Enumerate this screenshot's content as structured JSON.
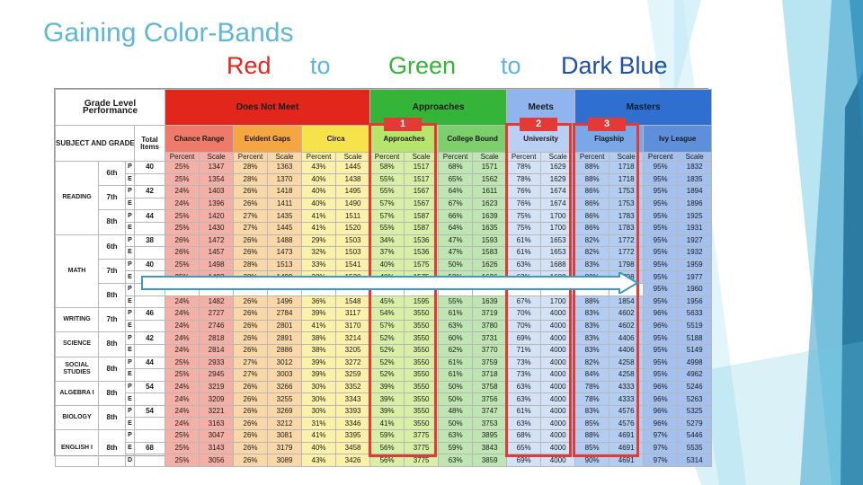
{
  "slide": {
    "title": "Gaining Color-Bands",
    "subtitle": {
      "w1": "Red",
      "w2": "to",
      "w3": "Green",
      "w4": "to",
      "w5": "Dark Blue"
    },
    "colors": {
      "red": "#e3261c",
      "green": "#35b43a",
      "blue": "#1f4fa8",
      "title": "#5fb7d6"
    }
  },
  "table": {
    "corner": "Grade Level Performance",
    "subject_header": "SUBJECT AND GRADE",
    "total_items": "Total Items",
    "groups": [
      "Does Not Meet",
      "Approaches",
      "Meets",
      "Masters"
    ],
    "bands": [
      "Chance Range",
      "Evident Gaps",
      "Circa",
      "Approaches",
      "College Bound",
      "University",
      "Flagship",
      "Ivy League"
    ],
    "badges": [
      "1",
      "2",
      "3"
    ],
    "pct": "Percent",
    "scale": "Scale",
    "rows": [
      {
        "subject": "READING",
        "grade": "6th",
        "t": "P",
        "items": "40",
        "v": [
          "25%",
          "1347",
          "28%",
          "1363",
          "43%",
          "1445",
          "58%",
          "1517",
          "68%",
          "1571",
          "78%",
          "1629",
          "88%",
          "1718",
          "95%",
          "1832"
        ]
      },
      {
        "t": "E",
        "v": [
          "25%",
          "1354",
          "28%",
          "1370",
          "40%",
          "1438",
          "55%",
          "1517",
          "65%",
          "1562",
          "78%",
          "1629",
          "88%",
          "1718",
          "95%",
          "1835"
        ]
      },
      {
        "grade": "7th",
        "t": "P",
        "items": "42",
        "v": [
          "24%",
          "1403",
          "26%",
          "1418",
          "40%",
          "1495",
          "55%",
          "1567",
          "64%",
          "1611",
          "76%",
          "1674",
          "86%",
          "1753",
          "95%",
          "1894"
        ]
      },
      {
        "t": "E",
        "v": [
          "24%",
          "1396",
          "26%",
          "1411",
          "40%",
          "1490",
          "57%",
          "1567",
          "67%",
          "1623",
          "76%",
          "1674",
          "86%",
          "1753",
          "95%",
          "1896"
        ]
      },
      {
        "grade": "8th",
        "t": "P",
        "items": "44",
        "v": [
          "25%",
          "1420",
          "27%",
          "1435",
          "41%",
          "1511",
          "57%",
          "1587",
          "66%",
          "1639",
          "75%",
          "1700",
          "86%",
          "1783",
          "95%",
          "1925"
        ]
      },
      {
        "t": "E",
        "v": [
          "25%",
          "1430",
          "27%",
          "1445",
          "41%",
          "1520",
          "55%",
          "1587",
          "64%",
          "1635",
          "75%",
          "1700",
          "86%",
          "1783",
          "95%",
          "1931"
        ]
      },
      {
        "subject": "MATH",
        "grade": "6th",
        "t": "P",
        "items": "38",
        "v": [
          "26%",
          "1472",
          "26%",
          "1488",
          "29%",
          "1503",
          "34%",
          "1536",
          "47%",
          "1593",
          "61%",
          "1653",
          "82%",
          "1772",
          "95%",
          "1927"
        ]
      },
      {
        "t": "E",
        "v": [
          "26%",
          "1457",
          "26%",
          "1473",
          "32%",
          "1503",
          "37%",
          "1536",
          "47%",
          "1583",
          "61%",
          "1653",
          "82%",
          "1772",
          "95%",
          "1932"
        ]
      },
      {
        "grade": "7th",
        "t": "P",
        "items": "40",
        "v": [
          "25%",
          "1498",
          "28%",
          "1513",
          "33%",
          "1541",
          "40%",
          "1575",
          "50%",
          "1626",
          "63%",
          "1688",
          "83%",
          "1798",
          "95%",
          "1959"
        ]
      },
      {
        "t": "E",
        "v": [
          "25%",
          "1483",
          "28%",
          "1499",
          "33%",
          "1530",
          "40%",
          "1575",
          "50%",
          "1626",
          "63%",
          "1688",
          "80%",
          "1798",
          "95%",
          "1977"
        ]
      },
      {
        "grade": "8th",
        "t": "P",
        "items": "",
        "v": [
          "",
          "",
          "",
          "",
          "",
          "",
          "",
          "",
          "",
          "",
          "",
          "",
          "",
          "",
          "95%",
          "1960"
        ]
      },
      {
        "t": "E",
        "v": [
          "24%",
          "1482",
          "26%",
          "1496",
          "36%",
          "1548",
          "45%",
          "1595",
          "55%",
          "1639",
          "67%",
          "1700",
          "88%",
          "1854",
          "95%",
          "1956"
        ]
      },
      {
        "subject": "WRITING",
        "grade": "7th",
        "t": "P",
        "items": "46",
        "v": [
          "24%",
          "2727",
          "26%",
          "2784",
          "39%",
          "3117",
          "54%",
          "3550",
          "61%",
          "3719",
          "70%",
          "4000",
          "83%",
          "4602",
          "96%",
          "5633"
        ]
      },
      {
        "t": "E",
        "v": [
          "24%",
          "2746",
          "26%",
          "2801",
          "41%",
          "3170",
          "57%",
          "3550",
          "63%",
          "3780",
          "70%",
          "4000",
          "83%",
          "4602",
          "96%",
          "5519"
        ]
      },
      {
        "subject": "SCIENCE",
        "grade": "8th",
        "t": "P",
        "items": "42",
        "v": [
          "24%",
          "2818",
          "26%",
          "2891",
          "38%",
          "3214",
          "52%",
          "3550",
          "60%",
          "3731",
          "69%",
          "4000",
          "83%",
          "4406",
          "95%",
          "5188"
        ]
      },
      {
        "t": "E",
        "v": [
          "24%",
          "2814",
          "26%",
          "2886",
          "38%",
          "3205",
          "52%",
          "3550",
          "62%",
          "3770",
          "71%",
          "4000",
          "83%",
          "4406",
          "95%",
          "5149"
        ]
      },
      {
        "subject": "SOCIAL STUDIES",
        "grade": "8th",
        "t": "P",
        "items": "44",
        "v": [
          "25%",
          "2933",
          "27%",
          "3012",
          "39%",
          "3272",
          "52%",
          "3550",
          "61%",
          "3759",
          "73%",
          "4000",
          "82%",
          "4258",
          "95%",
          "4998"
        ]
      },
      {
        "t": "E",
        "v": [
          "25%",
          "2945",
          "27%",
          "3003",
          "39%",
          "3259",
          "52%",
          "3550",
          "61%",
          "3718",
          "73%",
          "4000",
          "84%",
          "4258",
          "95%",
          "4962"
        ]
      },
      {
        "subject": "ALGEBRA I",
        "grade": "8th",
        "t": "P",
        "items": "54",
        "v": [
          "24%",
          "3219",
          "26%",
          "3266",
          "30%",
          "3352",
          "39%",
          "3550",
          "50%",
          "3758",
          "63%",
          "4000",
          "78%",
          "4333",
          "96%",
          "5246"
        ]
      },
      {
        "t": "E",
        "v": [
          "24%",
          "3209",
          "26%",
          "3255",
          "30%",
          "3343",
          "39%",
          "3550",
          "50%",
          "3756",
          "63%",
          "4000",
          "78%",
          "4333",
          "96%",
          "5263"
        ]
      },
      {
        "subject": "BIOLOGY",
        "grade": "8th",
        "t": "P",
        "items": "54",
        "v": [
          "24%",
          "3221",
          "26%",
          "3269",
          "30%",
          "3393",
          "39%",
          "3550",
          "48%",
          "3747",
          "61%",
          "4000",
          "83%",
          "4576",
          "96%",
          "5325"
        ]
      },
      {
        "t": "E",
        "v": [
          "24%",
          "3163",
          "26%",
          "3212",
          "31%",
          "3346",
          "41%",
          "3550",
          "50%",
          "3753",
          "63%",
          "4000",
          "85%",
          "4576",
          "96%",
          "5279"
        ]
      },
      {
        "subject": "ENGLISH I",
        "grade": "8th",
        "t": "P",
        "items": "",
        "v": [
          "25%",
          "3047",
          "26%",
          "3081",
          "41%",
          "3395",
          "59%",
          "3775",
          "63%",
          "3895",
          "68%",
          "4000",
          "88%",
          "4691",
          "97%",
          "5446"
        ]
      },
      {
        "t": "E",
        "items": "68",
        "v": [
          "25%",
          "3143",
          "26%",
          "3179",
          "40%",
          "3458",
          "56%",
          "3775",
          "59%",
          "3843",
          "65%",
          "4000",
          "85%",
          "4691",
          "97%",
          "5535"
        ]
      },
      {
        "t": "D",
        "v": [
          "25%",
          "3056",
          "26%",
          "3089",
          "43%",
          "3426",
          "56%",
          "3775",
          "63%",
          "3859",
          "69%",
          "4000",
          "90%",
          "4691",
          "97%",
          "5314"
        ]
      }
    ]
  }
}
